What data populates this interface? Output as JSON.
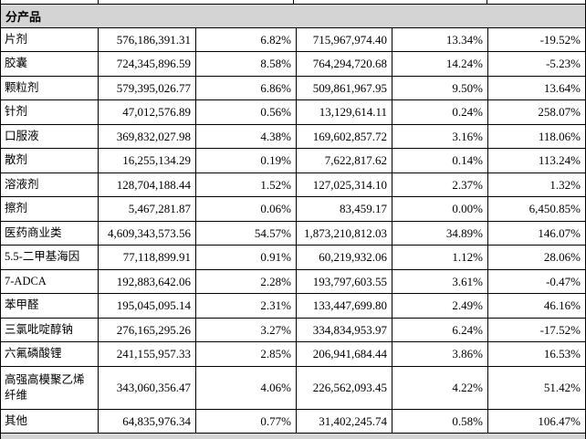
{
  "table": {
    "section_title": "分产品",
    "rows": [
      {
        "cells": [
          "片剂",
          "576,186,391.31",
          "6.82%",
          "715,967,974.40",
          "13.34%",
          "-19.52%"
        ]
      },
      {
        "cells": [
          "胶囊",
          "724,345,896.59",
          "8.58%",
          "764,294,720.68",
          "14.24%",
          "-5.23%"
        ]
      },
      {
        "cells": [
          "颗粒剂",
          "579,395,026.77",
          "6.86%",
          "509,861,967.95",
          "9.50%",
          "13.64%"
        ]
      },
      {
        "cells": [
          "针剂",
          "47,012,576.89",
          "0.56%",
          "13,129,614.11",
          "0.24%",
          "258.07%"
        ]
      },
      {
        "cells": [
          "口服液",
          "369,832,027.98",
          "4.38%",
          "169,602,857.72",
          "3.16%",
          "118.06%"
        ]
      },
      {
        "cells": [
          "散剂",
          "16,255,134.29",
          "0.19%",
          "7,622,817.62",
          "0.14%",
          "113.24%"
        ]
      },
      {
        "cells": [
          "溶液剂",
          "128,704,188.44",
          "1.52%",
          "127,025,314.10",
          "2.37%",
          "1.32%"
        ]
      },
      {
        "cells": [
          "擦剂",
          "5,467,281.87",
          "0.06%",
          "83,459.17",
          "0.00%",
          "6,450.85%"
        ]
      },
      {
        "cells": [
          "医药商业类",
          "4,609,343,573.56",
          "54.57%",
          "1,873,210,812.03",
          "34.89%",
          "146.07%"
        ]
      },
      {
        "cells": [
          "5.5-二甲基海因",
          "77,118,899.91",
          "0.91%",
          "60,219,932.06",
          "1.12%",
          "28.06%"
        ]
      },
      {
        "cells": [
          "7-ADCA",
          "192,883,642.06",
          "2.28%",
          "193,797,603.55",
          "3.61%",
          "-0.47%"
        ]
      },
      {
        "cells": [
          "苯甲醛",
          "195,045,095.14",
          "2.31%",
          "133,447,699.80",
          "2.49%",
          "46.16%"
        ]
      },
      {
        "cells": [
          "三氯吡啶醇钠",
          "276,165,295.26",
          "3.27%",
          "334,834,953.97",
          "6.24%",
          "-17.52%"
        ]
      },
      {
        "cells": [
          "六氟磷酸锂",
          "241,155,957.33",
          "2.85%",
          "206,941,684.44",
          "3.86%",
          "16.53%"
        ]
      },
      {
        "cells": [
          "高强高模聚乙烯纤维",
          "343,060,356.47",
          "4.06%",
          "226,562,093.45",
          "4.22%",
          "51.42%"
        ]
      },
      {
        "cells": [
          "其他",
          "64,835,976.34",
          "0.77%",
          "31,402,245.74",
          "0.58%",
          "106.47%"
        ]
      }
    ]
  },
  "colors": {
    "section_header_bg": "#d4d4d4",
    "border": "#000000",
    "text": "#000000"
  }
}
